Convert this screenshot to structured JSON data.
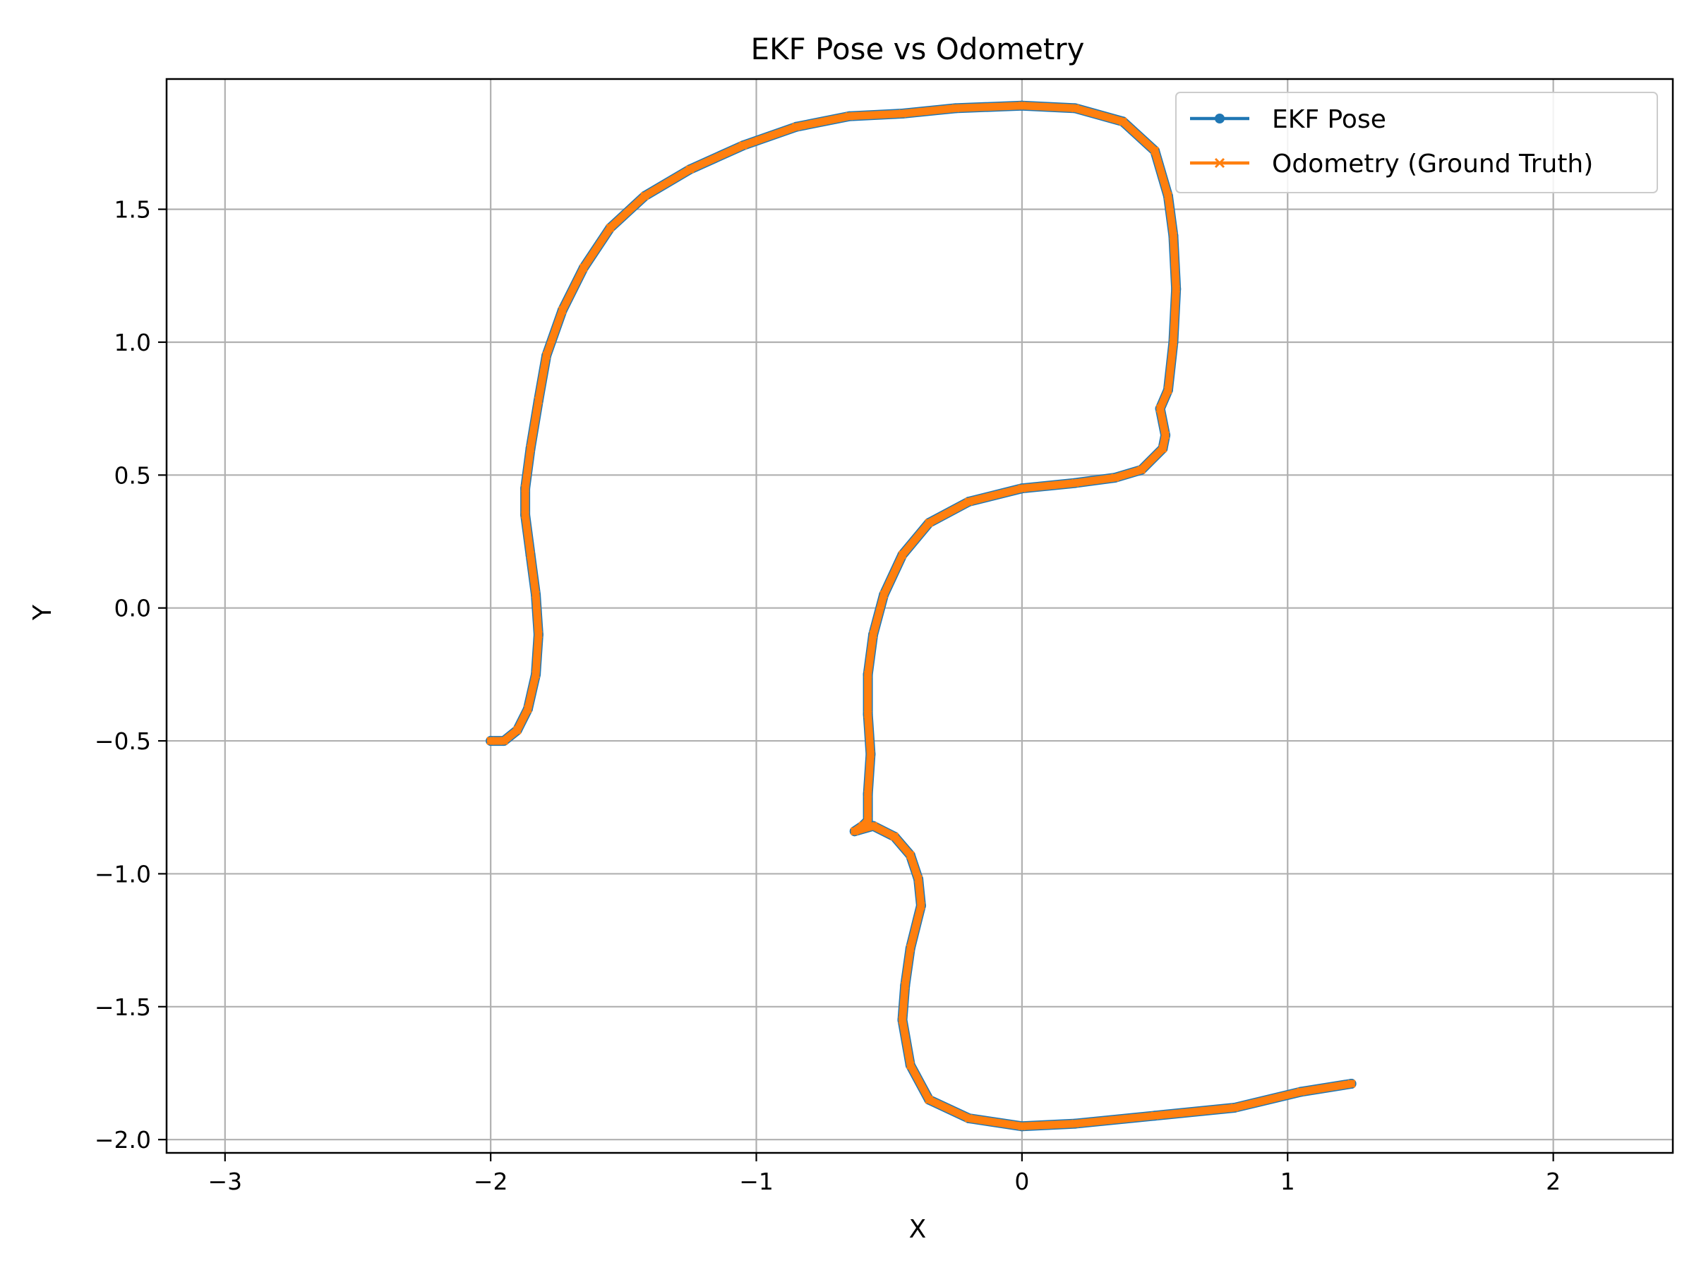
{
  "chart_data": {
    "type": "line",
    "title": "EKF Pose vs Odometry",
    "xlabel": "X",
    "ylabel": "Y",
    "xlim": [
      -3.22,
      2.45
    ],
    "ylim": [
      -2.05,
      1.99
    ],
    "xticks": [
      -3,
      -2,
      -1,
      0,
      1,
      2
    ],
    "xtick_labels": [
      "−3",
      "−2",
      "−1",
      "0",
      "1",
      "2"
    ],
    "yticks": [
      -2.0,
      -1.5,
      -1.0,
      -0.5,
      0.0,
      0.5,
      1.0,
      1.5
    ],
    "ytick_labels": [
      "−2.0",
      "−1.5",
      "−1.0",
      "−0.5",
      "0.0",
      "0.5",
      "1.0",
      "1.5"
    ],
    "grid": true,
    "legend_position": "top-right",
    "series": [
      {
        "name": "EKF Pose",
        "color": "#1f77b4",
        "marker": "circle",
        "x": [
          -2.0,
          -1.95,
          -1.9,
          -1.86,
          -1.83,
          -1.82,
          -1.83,
          -1.85,
          -1.87,
          -1.87,
          -1.85,
          -1.82,
          -1.79,
          -1.73,
          -1.65,
          -1.55,
          -1.42,
          -1.25,
          -1.05,
          -0.85,
          -0.65,
          -0.45,
          -0.25,
          0.0,
          0.2,
          0.38,
          0.5,
          0.55,
          0.57,
          0.58,
          0.57,
          0.55,
          0.52,
          0.54,
          0.53,
          0.45,
          0.35,
          0.2,
          0.0,
          -0.2,
          -0.35,
          -0.45,
          -0.52,
          -0.56,
          -0.58,
          -0.58,
          -0.57,
          -0.58,
          -0.58,
          -0.6,
          -0.63,
          -0.56,
          -0.48,
          -0.42,
          -0.39,
          -0.38,
          -0.42,
          -0.44,
          -0.45,
          -0.42,
          -0.35,
          -0.2,
          0.0,
          0.2,
          0.5,
          0.8,
          1.05,
          1.24
        ],
        "y": [
          -0.5,
          -0.5,
          -0.46,
          -0.38,
          -0.25,
          -0.1,
          0.05,
          0.2,
          0.35,
          0.45,
          0.6,
          0.78,
          0.95,
          1.12,
          1.28,
          1.43,
          1.55,
          1.65,
          1.74,
          1.81,
          1.85,
          1.86,
          1.88,
          1.89,
          1.88,
          1.83,
          1.72,
          1.55,
          1.4,
          1.2,
          1.0,
          0.82,
          0.75,
          0.65,
          0.6,
          0.52,
          0.49,
          0.47,
          0.45,
          0.4,
          0.32,
          0.2,
          0.05,
          -0.1,
          -0.25,
          -0.4,
          -0.55,
          -0.7,
          -0.8,
          -0.82,
          -0.84,
          -0.82,
          -0.86,
          -0.93,
          -1.02,
          -1.12,
          -1.28,
          -1.42,
          -1.55,
          -1.72,
          -1.85,
          -1.92,
          -1.95,
          -1.94,
          -1.91,
          -1.88,
          -1.82,
          -1.79
        ]
      },
      {
        "name": "Odometry (Ground Truth)",
        "color": "#ff7f0e",
        "marker": "x",
        "x": [
          -2.0,
          -1.95,
          -1.9,
          -1.86,
          -1.83,
          -1.82,
          -1.83,
          -1.85,
          -1.87,
          -1.87,
          -1.85,
          -1.82,
          -1.79,
          -1.73,
          -1.65,
          -1.55,
          -1.42,
          -1.25,
          -1.05,
          -0.85,
          -0.65,
          -0.45,
          -0.25,
          0.0,
          0.2,
          0.38,
          0.5,
          0.55,
          0.57,
          0.58,
          0.57,
          0.55,
          0.52,
          0.54,
          0.53,
          0.45,
          0.35,
          0.2,
          0.0,
          -0.2,
          -0.35,
          -0.45,
          -0.52,
          -0.56,
          -0.58,
          -0.58,
          -0.57,
          -0.58,
          -0.58,
          -0.6,
          -0.63,
          -0.56,
          -0.48,
          -0.42,
          -0.39,
          -0.38,
          -0.42,
          -0.44,
          -0.45,
          -0.42,
          -0.35,
          -0.2,
          0.0,
          0.2,
          0.5,
          0.8,
          1.05,
          1.24
        ],
        "y": [
          -0.5,
          -0.5,
          -0.46,
          -0.38,
          -0.25,
          -0.1,
          0.05,
          0.2,
          0.35,
          0.45,
          0.6,
          0.78,
          0.95,
          1.12,
          1.28,
          1.43,
          1.55,
          1.65,
          1.74,
          1.81,
          1.85,
          1.86,
          1.88,
          1.89,
          1.88,
          1.83,
          1.72,
          1.55,
          1.4,
          1.2,
          1.0,
          0.82,
          0.75,
          0.65,
          0.6,
          0.52,
          0.49,
          0.47,
          0.45,
          0.4,
          0.32,
          0.2,
          0.05,
          -0.1,
          -0.25,
          -0.4,
          -0.55,
          -0.7,
          -0.8,
          -0.82,
          -0.84,
          -0.82,
          -0.86,
          -0.93,
          -1.02,
          -1.12,
          -1.28,
          -1.42,
          -1.55,
          -1.72,
          -1.85,
          -1.92,
          -1.95,
          -1.94,
          -1.91,
          -1.88,
          -1.82,
          -1.79
        ]
      }
    ]
  }
}
